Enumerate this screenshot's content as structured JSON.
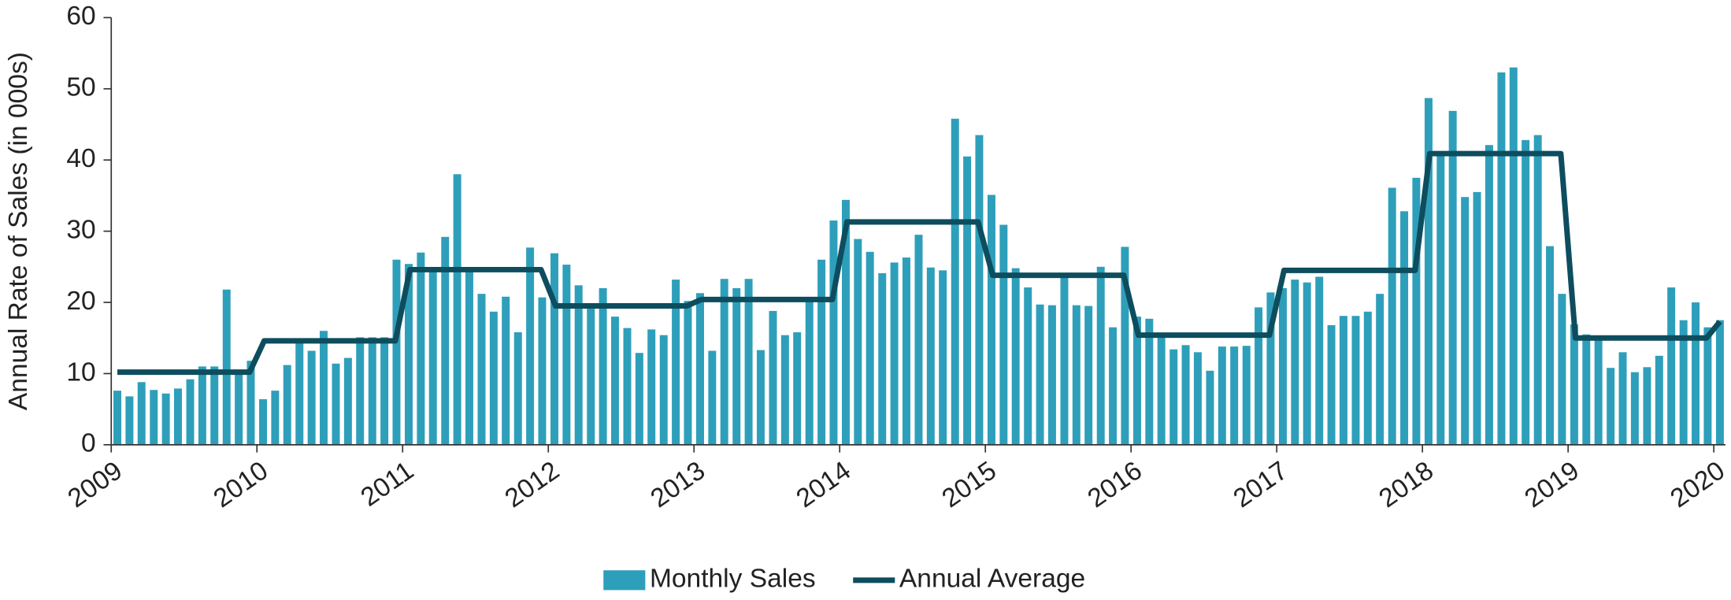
{
  "chart_data": {
    "type": "bar_line",
    "ylabel": "Annual Rate of Sales (in 000s)",
    "ylim": [
      0,
      60
    ],
    "yticks": [
      0,
      10,
      20,
      30,
      40,
      50,
      60
    ],
    "xlim": [
      2009,
      2020.08
    ],
    "xticks": [
      2009,
      2010,
      2011,
      2012,
      2013,
      2014,
      2015,
      2016,
      2017,
      2018,
      2019,
      2020
    ],
    "legend": "bottom",
    "series": [
      {
        "name": "Monthly Sales",
        "type": "bar",
        "color": "#2e9fba",
        "x": [
          2009.042,
          2009.125,
          2009.208,
          2009.292,
          2009.375,
          2009.458,
          2009.542,
          2009.625,
          2009.708,
          2009.792,
          2009.875,
          2009.958,
          2010.042,
          2010.125,
          2010.208,
          2010.292,
          2010.375,
          2010.458,
          2010.542,
          2010.625,
          2010.708,
          2010.792,
          2010.875,
          2010.958,
          2011.042,
          2011.125,
          2011.208,
          2011.292,
          2011.375,
          2011.458,
          2011.542,
          2011.625,
          2011.708,
          2011.792,
          2011.875,
          2011.958,
          2012.042,
          2012.125,
          2012.208,
          2012.292,
          2012.375,
          2012.458,
          2012.542,
          2012.625,
          2012.708,
          2012.792,
          2012.875,
          2012.958,
          2013.042,
          2013.125,
          2013.208,
          2013.292,
          2013.375,
          2013.458,
          2013.542,
          2013.625,
          2013.708,
          2013.792,
          2013.875,
          2013.958,
          2014.042,
          2014.125,
          2014.208,
          2014.292,
          2014.375,
          2014.458,
          2014.542,
          2014.625,
          2014.708,
          2014.792,
          2014.875,
          2014.958,
          2015.042,
          2015.125,
          2015.208,
          2015.292,
          2015.375,
          2015.458,
          2015.542,
          2015.625,
          2015.708,
          2015.792,
          2015.875,
          2015.958,
          2016.042,
          2016.125,
          2016.208,
          2016.292,
          2016.375,
          2016.458,
          2016.542,
          2016.625,
          2016.708,
          2016.792,
          2016.875,
          2016.958,
          2017.042,
          2017.125,
          2017.208,
          2017.292,
          2017.375,
          2017.458,
          2017.542,
          2017.625,
          2017.708,
          2017.792,
          2017.875,
          2017.958,
          2018.042,
          2018.125,
          2018.208,
          2018.292,
          2018.375,
          2018.458,
          2018.542,
          2018.625,
          2018.708,
          2018.792,
          2018.875,
          2018.958,
          2019.042,
          2019.125,
          2019.208,
          2019.292,
          2019.375,
          2019.458,
          2019.542,
          2019.625,
          2019.708,
          2019.792,
          2019.875,
          2019.958,
          2020.042
        ],
        "values": [
          7.6,
          6.8,
          8.8,
          7.7,
          7.2,
          7.9,
          9.2,
          11.0,
          11.0,
          21.8,
          10.2,
          11.8,
          6.4,
          7.6,
          11.2,
          14.4,
          13.2,
          16.0,
          11.4,
          12.2,
          15.1,
          15.1,
          15.1,
          26.0,
          25.4,
          27.0,
          24.5,
          29.2,
          38.0,
          24.5,
          21.2,
          18.7,
          20.8,
          15.8,
          27.7,
          20.7,
          26.9,
          25.3,
          22.4,
          19.5,
          22.0,
          18.0,
          16.4,
          12.9,
          16.2,
          15.4,
          23.2,
          20.2,
          21.3,
          13.2,
          23.3,
          22.0,
          23.3,
          13.3,
          18.8,
          15.4,
          15.8,
          20.5,
          26.0,
          31.5,
          34.4,
          28.9,
          27.1,
          24.1,
          25.6,
          26.3,
          29.5,
          24.9,
          24.5,
          45.8,
          40.5,
          43.5,
          35.1,
          30.9,
          24.8,
          22.1,
          19.7,
          19.6,
          23.7,
          19.6,
          19.5,
          25.0,
          16.5,
          27.8,
          18.0,
          17.7,
          15.4,
          13.4,
          14.0,
          13.0,
          10.4,
          13.8,
          13.8,
          13.9,
          19.3,
          21.4,
          22.0,
          23.2,
          22.8,
          23.6,
          16.8,
          18.1,
          18.1,
          18.7,
          21.2,
          36.1,
          32.8,
          37.5,
          48.7,
          40.9,
          46.9,
          34.8,
          35.5,
          42.1,
          52.3,
          53.0,
          42.8,
          43.5,
          27.9,
          21.2,
          16.9,
          15.5,
          15.0,
          10.8,
          13.0,
          10.2,
          10.9,
          12.5,
          22.1,
          17.5,
          20.0,
          16.5,
          17.5
        ]
      },
      {
        "name": "Annual Average",
        "type": "line",
        "color": "#0d4d5e",
        "x": [
          2009.042,
          2009.95,
          2010.05,
          2010.95,
          2011.05,
          2011.95,
          2012.05,
          2012.95,
          2013.05,
          2013.95,
          2014.05,
          2014.95,
          2015.05,
          2015.95,
          2016.05,
          2016.95,
          2017.05,
          2017.95,
          2018.05,
          2018.95,
          2019.05,
          2019.95,
          2020.042
        ],
        "values": [
          10.2,
          10.2,
          14.6,
          14.6,
          24.6,
          24.6,
          19.5,
          19.5,
          20.4,
          20.4,
          31.3,
          31.3,
          23.8,
          23.8,
          15.4,
          15.4,
          24.5,
          24.5,
          40.9,
          40.9,
          15.0,
          15.0,
          17.3
        ]
      }
    ]
  }
}
